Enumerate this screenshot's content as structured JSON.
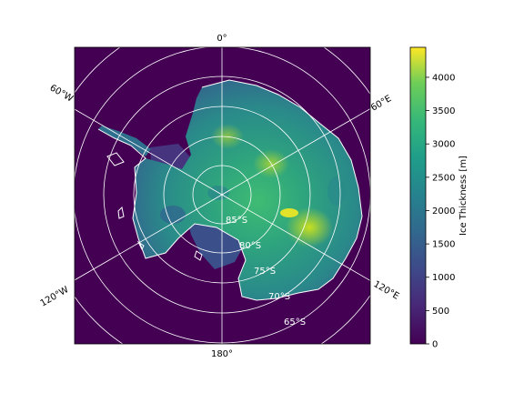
{
  "map": {
    "projection": "south-polar-stereographic",
    "background_color": "#440154",
    "coastline_color": "#ffffff",
    "grid_color": "#ffffff",
    "meridian_labels": [
      "0°",
      "60°E",
      "120°E",
      "180°",
      "120°W",
      "60°W"
    ],
    "latitude_labels": [
      "85°S",
      "80°S",
      "75°S",
      "70°S",
      "65°S"
    ]
  },
  "colorbar": {
    "label": "Ice Thickness [m]",
    "colormap": "viridis",
    "ticks": [
      "0",
      "500",
      "1000",
      "1500",
      "2000",
      "2500",
      "3000",
      "3500",
      "4000"
    ],
    "range": [
      0,
      4450
    ]
  }
}
